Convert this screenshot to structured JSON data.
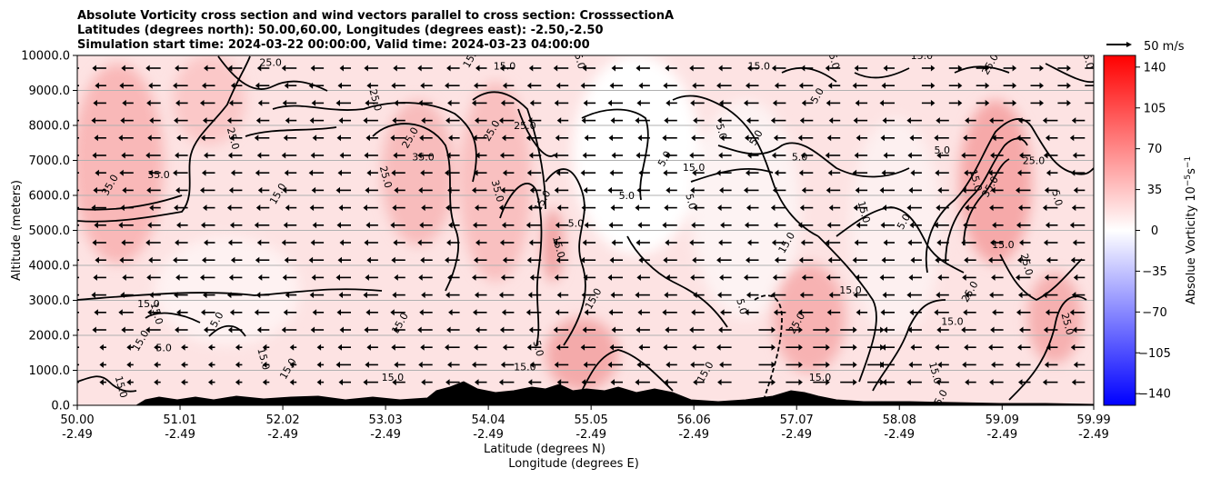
{
  "chart_data": {
    "type": "heatmap",
    "title_lines": [
      "Absolute Vorticity cross section and wind vectors parallel to cross section: CrosssectionA",
      "Latitudes (degrees north): 50.00,60.00, Longitudes (degrees east): -2.50,-2.50",
      "Simulation start time: 2024-03-22 00:00:00, Valid time: 2024-03-23 04:00:00"
    ],
    "ylabel": "Altitude (meters)",
    "xlabel_lines": [
      "Latitude (degrees N)",
      "Longitude (degrees E)"
    ],
    "ylim": [
      0,
      10000
    ],
    "xlim": [
      50.0,
      59.99
    ],
    "y_ticks": [
      "0.0",
      "1000.0",
      "2000.0",
      "3000.0",
      "4000.0",
      "5000.0",
      "6000.0",
      "7000.0",
      "8000.0",
      "9000.0",
      "10000.0"
    ],
    "x_ticks": [
      {
        "value": 50.0,
        "lat": "50.00",
        "lon": "-2.49"
      },
      {
        "value": 51.01,
        "lat": "51.01",
        "lon": "-2.49"
      },
      {
        "value": 52.02,
        "lat": "52.02",
        "lon": "-2.49"
      },
      {
        "value": 53.03,
        "lat": "53.03",
        "lon": "-2.49"
      },
      {
        "value": 54.04,
        "lat": "54.04",
        "lon": "-2.49"
      },
      {
        "value": 55.05,
        "lat": "55.05",
        "lon": "-2.49"
      },
      {
        "value": 56.06,
        "lat": "56.06",
        "lon": "-2.49"
      },
      {
        "value": 57.07,
        "lat": "57.07",
        "lon": "-2.49"
      },
      {
        "value": 58.08,
        "lat": "58.08",
        "lon": "-2.49"
      },
      {
        "value": 59.09,
        "lat": "59.09",
        "lon": "-2.49"
      },
      {
        "value": 59.99,
        "lat": "59.99",
        "lon": "-2.49"
      }
    ],
    "grid": "horizontal",
    "colorbar": {
      "label": "Absolue Vorticity 10",
      "label_exponent": "−5",
      "label_unit": "s",
      "label_unit_exponent": "−1",
      "range": [
        -150,
        150
      ],
      "ticks": [
        "140",
        "105",
        "70",
        "35",
        "0",
        "−35",
        "−70",
        "−105",
        "−140"
      ],
      "tick_values": [
        140,
        105,
        70,
        35,
        0,
        -35,
        -70,
        -105,
        -140
      ]
    },
    "quiver_key": {
      "label": "50 m/s",
      "value": 50
    },
    "contour_levels": [
      "5.0",
      "15.0",
      "25.0",
      "35.0"
    ],
    "contour_labels": [
      {
        "text": "35.0",
        "lat": 50.35,
        "alt": 6250
      },
      {
        "text": "35.0",
        "lat": 50.8,
        "alt": 6500
      },
      {
        "text": "25.0",
        "lat": 51.5,
        "alt": 7600
      },
      {
        "text": "15.0",
        "lat": 52.0,
        "alt": 6000
      },
      {
        "text": "25.0",
        "lat": 51.9,
        "alt": 9700
      },
      {
        "text": "25.0",
        "lat": 52.9,
        "alt": 8700
      },
      {
        "text": "25.0",
        "lat": 53.3,
        "alt": 7600
      },
      {
        "text": "35.0",
        "lat": 53.4,
        "alt": 7000
      },
      {
        "text": "25.0",
        "lat": 53.0,
        "alt": 6500
      },
      {
        "text": "15.0",
        "lat": 53.9,
        "alt": 9900
      },
      {
        "text": "15.0",
        "lat": 54.2,
        "alt": 9600
      },
      {
        "text": "15.0",
        "lat": 54.9,
        "alt": 9900
      },
      {
        "text": "25.0",
        "lat": 54.1,
        "alt": 7800
      },
      {
        "text": "25.0",
        "lat": 54.4,
        "alt": 7900
      },
      {
        "text": "35.0",
        "lat": 54.1,
        "alt": 6100
      },
      {
        "text": "15.0",
        "lat": 54.6,
        "alt": 5800
      },
      {
        "text": "5.0",
        "lat": 54.9,
        "alt": 5100
      },
      {
        "text": "15.0",
        "lat": 54.7,
        "alt": 4500
      },
      {
        "text": "15.0",
        "lat": 55.1,
        "alt": 3000
      },
      {
        "text": "5.0",
        "lat": 55.4,
        "alt": 5900
      },
      {
        "text": "5.0",
        "lat": 56.0,
        "alt": 5800
      },
      {
        "text": "5.0",
        "lat": 55.8,
        "alt": 7000
      },
      {
        "text": "15.0",
        "lat": 56.06,
        "alt": 6700
      },
      {
        "text": "5.0",
        "lat": 56.3,
        "alt": 7800
      },
      {
        "text": "5.0",
        "lat": 56.7,
        "alt": 7600
      },
      {
        "text": "15.0",
        "lat": 56.7,
        "alt": 9600
      },
      {
        "text": "15.0",
        "lat": 57.4,
        "alt": 9900
      },
      {
        "text": "5.0",
        "lat": 57.3,
        "alt": 8800
      },
      {
        "text": "5.0",
        "lat": 57.1,
        "alt": 7000
      },
      {
        "text": "15.0",
        "lat": 57.7,
        "alt": 5500
      },
      {
        "text": "15.0",
        "lat": 57.0,
        "alt": 4600
      },
      {
        "text": "15.0",
        "lat": 57.6,
        "alt": 3200
      },
      {
        "text": "5.0",
        "lat": 56.5,
        "alt": 2800
      },
      {
        "text": "25.0",
        "lat": 57.1,
        "alt": 2300
      },
      {
        "text": "15.0",
        "lat": 58.3,
        "alt": 9900
      },
      {
        "text": "15.0",
        "lat": 59.9,
        "alt": 9900
      },
      {
        "text": "25.0",
        "lat": 59.0,
        "alt": 9700
      },
      {
        "text": "5.0",
        "lat": 58.5,
        "alt": 7200
      },
      {
        "text": "15.0",
        "lat": 58.8,
        "alt": 6400
      },
      {
        "text": "35.0",
        "lat": 59.0,
        "alt": 6200
      },
      {
        "text": "25.0",
        "lat": 59.4,
        "alt": 6900
      },
      {
        "text": "5.0",
        "lat": 59.6,
        "alt": 5900
      },
      {
        "text": "5.0",
        "lat": 58.15,
        "alt": 5200
      },
      {
        "text": "15.0",
        "lat": 59.1,
        "alt": 4500
      },
      {
        "text": "25.0",
        "lat": 59.3,
        "alt": 4000
      },
      {
        "text": "25.0",
        "lat": 58.8,
        "alt": 3200
      },
      {
        "text": "15.0",
        "lat": 58.6,
        "alt": 2300
      },
      {
        "text": "25.0",
        "lat": 59.7,
        "alt": 2300
      },
      {
        "text": "5.0",
        "lat": 51.4,
        "alt": 2400
      },
      {
        "text": "15.0",
        "lat": 50.7,
        "alt": 2800
      },
      {
        "text": "15.0",
        "lat": 50.75,
        "alt": 2600
      },
      {
        "text": "15.0",
        "lat": 50.65,
        "alt": 1800
      },
      {
        "text": "5.0",
        "lat": 50.85,
        "alt": 1550
      },
      {
        "text": "15.0",
        "lat": 51.8,
        "alt": 1300
      },
      {
        "text": "15.0",
        "lat": 52.1,
        "alt": 1000
      },
      {
        "text": "15.0",
        "lat": 53.1,
        "alt": 700
      },
      {
        "text": "15.0",
        "lat": 50.4,
        "alt": 500
      },
      {
        "text": "15.0",
        "lat": 53.2,
        "alt": 2300
      },
      {
        "text": "15.0",
        "lat": 54.4,
        "alt": 1000
      },
      {
        "text": "5.0",
        "lat": 54.5,
        "alt": 1600
      },
      {
        "text": "15.0",
        "lat": 56.2,
        "alt": 900
      },
      {
        "text": "15.0",
        "lat": 57.3,
        "alt": 700
      },
      {
        "text": "15.0",
        "lat": 58.4,
        "alt": 900
      },
      {
        "text": "15.0",
        "lat": 58.5,
        "alt": 100
      }
    ]
  }
}
